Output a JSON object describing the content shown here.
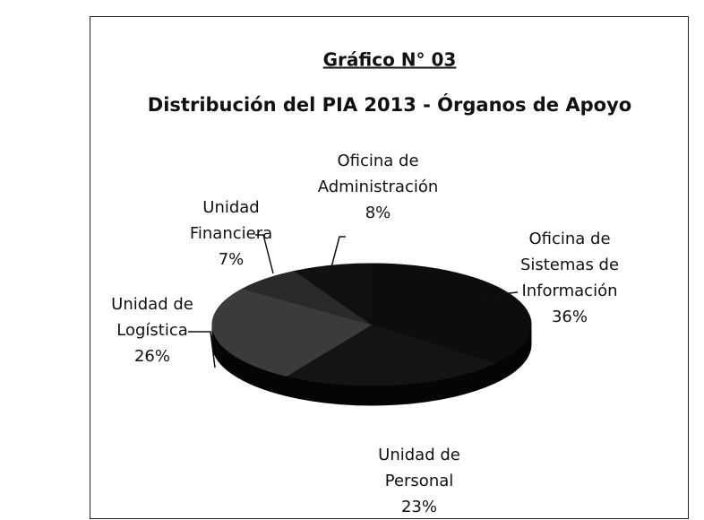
{
  "chart_data": {
    "type": "pie3d",
    "title": "Gráfico N° 03",
    "subtitle": "Distribución del PIA 2013 - Órganos de Apoyo",
    "categories": [
      "Oficina de Sistemas de Información",
      "Unidad de Personal",
      "Unidad de Logística",
      "Unidad Financiera",
      "Oficina de Administración"
    ],
    "values": [
      36,
      23,
      26,
      7,
      8
    ],
    "value_labels": [
      "36%",
      "23%",
      "26%",
      "7%",
      "8%"
    ],
    "colors": [
      "#0d0d0d",
      "#141414",
      "#3b3b3b",
      "#2a2a2a",
      "#101010"
    ]
  }
}
